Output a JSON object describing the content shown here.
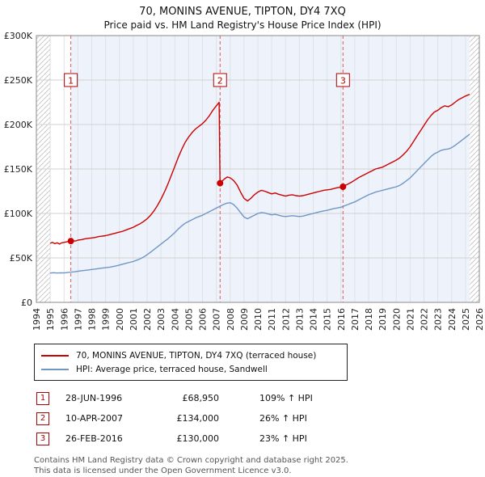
{
  "chart_data": {
    "type": "line",
    "title": "70, MONINS AVENUE, TIPTON, DY4 7XQ",
    "subtitle": "Price paid vs. HM Land Registry's House Price Index (HPI)",
    "xlim": [
      1994,
      2026
    ],
    "ylim": [
      0,
      300000
    ],
    "grid": true,
    "legend_position": "bottom",
    "x_ticks": [
      1994,
      1995,
      1996,
      1997,
      1998,
      1999,
      2000,
      2001,
      2002,
      2003,
      2004,
      2005,
      2006,
      2007,
      2008,
      2009,
      2010,
      2011,
      2012,
      2013,
      2014,
      2015,
      2016,
      2017,
      2018,
      2019,
      2020,
      2021,
      2022,
      2023,
      2024,
      2025,
      2026
    ],
    "y_tick_values": [
      0,
      50000,
      100000,
      150000,
      200000,
      250000,
      300000
    ],
    "y_tick_labels": [
      "£0",
      "£50K",
      "£100K",
      "£150K",
      "£200K",
      "£250K",
      "£300K"
    ],
    "shade_color": "#eef3fb",
    "shaded_region": [
      1996.49,
      2025.3
    ],
    "hatch_regions": [
      [
        1994,
        1995.0
      ],
      [
        2025.3,
        2026
      ]
    ],
    "colors": {
      "property": "#cc0000",
      "hpi": "#6f96c6",
      "sale_line": "#e05555"
    },
    "sale_markers": [
      {
        "num": "1",
        "x": 1996.49,
        "price": 68950
      },
      {
        "num": "2",
        "x": 2007.27,
        "price": 134000
      },
      {
        "num": "3",
        "x": 2016.15,
        "price": 130000
      }
    ],
    "series": [
      {
        "name": "70, MONINS AVENUE, TIPTON, DY4 7XQ (terraced house)",
        "color": "#cc0000",
        "points": [
          [
            1995.0,
            66500
          ],
          [
            1995.17,
            67500
          ],
          [
            1995.33,
            66000
          ],
          [
            1995.5,
            67000
          ],
          [
            1995.67,
            65500
          ],
          [
            1995.83,
            67000
          ],
          [
            1996.0,
            67500
          ],
          [
            1996.17,
            68000
          ],
          [
            1996.33,
            68500
          ],
          [
            1996.49,
            68950
          ],
          [
            1996.67,
            69200
          ],
          [
            1996.83,
            69000
          ],
          [
            1997.0,
            70000
          ],
          [
            1997.25,
            70500
          ],
          [
            1997.5,
            71500
          ],
          [
            1997.75,
            72000
          ],
          [
            1998.0,
            72500
          ],
          [
            1998.25,
            73000
          ],
          [
            1998.5,
            74000
          ],
          [
            1998.75,
            74500
          ],
          [
            1999.0,
            75000
          ],
          [
            1999.25,
            76000
          ],
          [
            1999.5,
            77000
          ],
          [
            1999.75,
            78000
          ],
          [
            2000.0,
            79000
          ],
          [
            2000.25,
            80000
          ],
          [
            2000.5,
            81500
          ],
          [
            2000.75,
            83000
          ],
          [
            2001.0,
            84500
          ],
          [
            2001.25,
            86500
          ],
          [
            2001.5,
            88500
          ],
          [
            2001.75,
            91000
          ],
          [
            2002.0,
            94000
          ],
          [
            2002.25,
            98000
          ],
          [
            2002.5,
            103000
          ],
          [
            2002.75,
            109000
          ],
          [
            2003.0,
            116000
          ],
          [
            2003.25,
            124000
          ],
          [
            2003.5,
            133000
          ],
          [
            2003.75,
            143000
          ],
          [
            2004.0,
            153000
          ],
          [
            2004.25,
            163000
          ],
          [
            2004.5,
            172000
          ],
          [
            2004.75,
            180000
          ],
          [
            2005.0,
            186000
          ],
          [
            2005.25,
            191000
          ],
          [
            2005.5,
            195000
          ],
          [
            2005.75,
            198000
          ],
          [
            2006.0,
            201000
          ],
          [
            2006.25,
            205000
          ],
          [
            2006.5,
            210000
          ],
          [
            2006.75,
            216000
          ],
          [
            2007.0,
            221000
          ],
          [
            2007.2,
            225000
          ],
          [
            2007.27,
            134000
          ],
          [
            2007.4,
            136000
          ],
          [
            2007.6,
            139000
          ],
          [
            2007.8,
            141000
          ],
          [
            2008.0,
            140000
          ],
          [
            2008.25,
            137000
          ],
          [
            2008.5,
            132000
          ],
          [
            2008.75,
            124000
          ],
          [
            2009.0,
            117000
          ],
          [
            2009.25,
            114000
          ],
          [
            2009.5,
            117000
          ],
          [
            2009.75,
            121000
          ],
          [
            2010.0,
            124000
          ],
          [
            2010.25,
            126000
          ],
          [
            2010.5,
            125000
          ],
          [
            2010.75,
            123500
          ],
          [
            2011.0,
            122000
          ],
          [
            2011.25,
            123000
          ],
          [
            2011.5,
            121500
          ],
          [
            2011.75,
            120500
          ],
          [
            2012.0,
            119500
          ],
          [
            2012.25,
            120500
          ],
          [
            2012.5,
            121000
          ],
          [
            2012.75,
            120000
          ],
          [
            2013.0,
            119500
          ],
          [
            2013.25,
            120000
          ],
          [
            2013.5,
            121000
          ],
          [
            2013.75,
            122000
          ],
          [
            2014.0,
            123000
          ],
          [
            2014.25,
            124000
          ],
          [
            2014.5,
            125000
          ],
          [
            2014.75,
            126000
          ],
          [
            2015.0,
            126500
          ],
          [
            2015.25,
            127000
          ],
          [
            2015.5,
            128000
          ],
          [
            2015.75,
            129000
          ],
          [
            2016.0,
            129500
          ],
          [
            2016.15,
            130000
          ],
          [
            2016.25,
            131000
          ],
          [
            2016.5,
            133000
          ],
          [
            2016.75,
            135000
          ],
          [
            2017.0,
            137500
          ],
          [
            2017.25,
            140000
          ],
          [
            2017.5,
            142000
          ],
          [
            2017.75,
            144000
          ],
          [
            2018.0,
            146000
          ],
          [
            2018.25,
            148000
          ],
          [
            2018.5,
            150000
          ],
          [
            2018.75,
            151000
          ],
          [
            2019.0,
            152000
          ],
          [
            2019.25,
            154000
          ],
          [
            2019.5,
            156000
          ],
          [
            2019.75,
            158000
          ],
          [
            2020.0,
            160000
          ],
          [
            2020.25,
            162500
          ],
          [
            2020.5,
            166000
          ],
          [
            2020.75,
            170000
          ],
          [
            2021.0,
            175000
          ],
          [
            2021.25,
            181000
          ],
          [
            2021.5,
            187000
          ],
          [
            2021.75,
            193000
          ],
          [
            2022.0,
            199000
          ],
          [
            2022.25,
            205000
          ],
          [
            2022.5,
            210000
          ],
          [
            2022.75,
            214000
          ],
          [
            2023.0,
            216000
          ],
          [
            2023.25,
            219000
          ],
          [
            2023.5,
            221000
          ],
          [
            2023.75,
            220000
          ],
          [
            2024.0,
            222000
          ],
          [
            2024.25,
            225000
          ],
          [
            2024.5,
            228000
          ],
          [
            2024.75,
            230000
          ],
          [
            2025.0,
            232000
          ],
          [
            2025.3,
            234000
          ]
        ]
      },
      {
        "name": "HPI: Average price, terraced house, Sandwell",
        "color": "#6f96c6",
        "points": [
          [
            1995.0,
            33000
          ],
          [
            1995.25,
            33400
          ],
          [
            1995.5,
            33000
          ],
          [
            1995.75,
            33300
          ],
          [
            1996.0,
            33100
          ],
          [
            1996.25,
            33500
          ],
          [
            1996.5,
            34000
          ],
          [
            1996.75,
            34400
          ],
          [
            1997.0,
            35000
          ],
          [
            1997.25,
            35500
          ],
          [
            1997.5,
            36000
          ],
          [
            1997.75,
            36500
          ],
          [
            1998.0,
            37000
          ],
          [
            1998.25,
            37500
          ],
          [
            1998.5,
            38000
          ],
          [
            1998.75,
            38500
          ],
          [
            1999.0,
            39000
          ],
          [
            1999.25,
            39500
          ],
          [
            1999.5,
            40200
          ],
          [
            1999.75,
            41000
          ],
          [
            2000.0,
            42000
          ],
          [
            2000.25,
            43000
          ],
          [
            2000.5,
            44000
          ],
          [
            2000.75,
            45000
          ],
          [
            2001.0,
            46000
          ],
          [
            2001.25,
            47500
          ],
          [
            2001.5,
            49000
          ],
          [
            2001.75,
            51000
          ],
          [
            2002.0,
            53500
          ],
          [
            2002.25,
            56500
          ],
          [
            2002.5,
            59500
          ],
          [
            2002.75,
            62500
          ],
          [
            2003.0,
            65500
          ],
          [
            2003.25,
            68500
          ],
          [
            2003.5,
            71500
          ],
          [
            2003.75,
            75000
          ],
          [
            2004.0,
            78500
          ],
          [
            2004.25,
            82500
          ],
          [
            2004.5,
            86000
          ],
          [
            2004.75,
            89000
          ],
          [
            2005.0,
            91000
          ],
          [
            2005.25,
            93000
          ],
          [
            2005.5,
            95000
          ],
          [
            2005.75,
            96500
          ],
          [
            2006.0,
            98000
          ],
          [
            2006.25,
            100000
          ],
          [
            2006.5,
            102000
          ],
          [
            2006.75,
            104000
          ],
          [
            2007.0,
            106000
          ],
          [
            2007.25,
            108000
          ],
          [
            2007.5,
            110000
          ],
          [
            2007.75,
            111500
          ],
          [
            2008.0,
            112000
          ],
          [
            2008.25,
            110000
          ],
          [
            2008.5,
            106000
          ],
          [
            2008.75,
            101000
          ],
          [
            2009.0,
            96000
          ],
          [
            2009.25,
            94000
          ],
          [
            2009.5,
            96000
          ],
          [
            2009.75,
            98000
          ],
          [
            2010.0,
            100000
          ],
          [
            2010.25,
            101000
          ],
          [
            2010.5,
            100500
          ],
          [
            2010.75,
            99500
          ],
          [
            2011.0,
            98500
          ],
          [
            2011.25,
            99000
          ],
          [
            2011.5,
            98000
          ],
          [
            2011.75,
            97000
          ],
          [
            2012.0,
            96500
          ],
          [
            2012.25,
            97000
          ],
          [
            2012.5,
            97500
          ],
          [
            2012.75,
            97000
          ],
          [
            2013.0,
            96500
          ],
          [
            2013.25,
            97000
          ],
          [
            2013.5,
            98000
          ],
          [
            2013.75,
            99000
          ],
          [
            2014.0,
            100000
          ],
          [
            2014.25,
            101000
          ],
          [
            2014.5,
            102000
          ],
          [
            2014.75,
            102800
          ],
          [
            2015.0,
            103500
          ],
          [
            2015.25,
            104500
          ],
          [
            2015.5,
            105500
          ],
          [
            2015.75,
            106200
          ],
          [
            2016.0,
            107000
          ],
          [
            2016.25,
            108500
          ],
          [
            2016.5,
            110000
          ],
          [
            2016.75,
            111500
          ],
          [
            2017.0,
            113000
          ],
          [
            2017.25,
            115000
          ],
          [
            2017.5,
            117000
          ],
          [
            2017.75,
            119000
          ],
          [
            2018.0,
            121000
          ],
          [
            2018.25,
            122500
          ],
          [
            2018.5,
            124000
          ],
          [
            2018.75,
            125000
          ],
          [
            2019.0,
            126000
          ],
          [
            2019.25,
            127000
          ],
          [
            2019.5,
            128000
          ],
          [
            2019.75,
            129000
          ],
          [
            2020.0,
            130000
          ],
          [
            2020.25,
            131500
          ],
          [
            2020.5,
            134000
          ],
          [
            2020.75,
            137000
          ],
          [
            2021.0,
            140000
          ],
          [
            2021.25,
            144000
          ],
          [
            2021.5,
            148000
          ],
          [
            2021.75,
            152000
          ],
          [
            2022.0,
            156000
          ],
          [
            2022.25,
            160000
          ],
          [
            2022.5,
            164000
          ],
          [
            2022.75,
            167000
          ],
          [
            2023.0,
            169000
          ],
          [
            2023.25,
            171000
          ],
          [
            2023.5,
            172000
          ],
          [
            2023.75,
            172500
          ],
          [
            2024.0,
            174000
          ],
          [
            2024.25,
            176500
          ],
          [
            2024.5,
            179500
          ],
          [
            2024.75,
            182500
          ],
          [
            2025.0,
            185500
          ],
          [
            2025.3,
            189000
          ]
        ]
      }
    ]
  },
  "sales": [
    {
      "num": "1",
      "date": "28-JUN-1996",
      "price": "£68,950",
      "hpi": "109% ↑ HPI"
    },
    {
      "num": "2",
      "date": "10-APR-2007",
      "price": "£134,000",
      "hpi": "26% ↑ HPI"
    },
    {
      "num": "3",
      "date": "26-FEB-2016",
      "price": "£130,000",
      "hpi": "23% ↑ HPI"
    }
  ],
  "footer": {
    "line1": "Contains HM Land Registry data © Crown copyright and database right 2025.",
    "line2": "This data is licensed under the Open Government Licence v3.0."
  }
}
